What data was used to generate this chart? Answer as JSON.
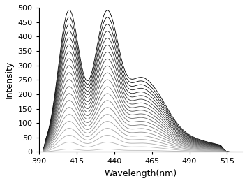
{
  "xlabel": "Wavelength(nm)",
  "ylabel": "Intensity",
  "xlim": [
    390,
    525
  ],
  "ylim": [
    0,
    500
  ],
  "xticks": [
    390,
    415,
    440,
    465,
    490,
    515
  ],
  "yticks": [
    0,
    50,
    100,
    150,
    200,
    250,
    300,
    350,
    400,
    450,
    500
  ],
  "num_curves": 21,
  "peak1_wl": 410,
  "peak2_wl": 435,
  "peak3_wl": 462,
  "peak1_max": 480,
  "peak2_max": 445,
  "peak3_max": 170,
  "peak1_sigma": 7,
  "peak2_sigma": 8,
  "peak3_sigma": 12,
  "shoulder_wl": 455,
  "shoulder_max": 40,
  "shoulder_sigma": 6,
  "base_wl": 470,
  "base_max": 60,
  "base_sigma": 30,
  "wl_start": 390,
  "wl_end": 525,
  "background_color": "#ffffff",
  "tick_label_fontsize": 8,
  "axis_label_fontsize": 9,
  "linewidth": 0.6
}
